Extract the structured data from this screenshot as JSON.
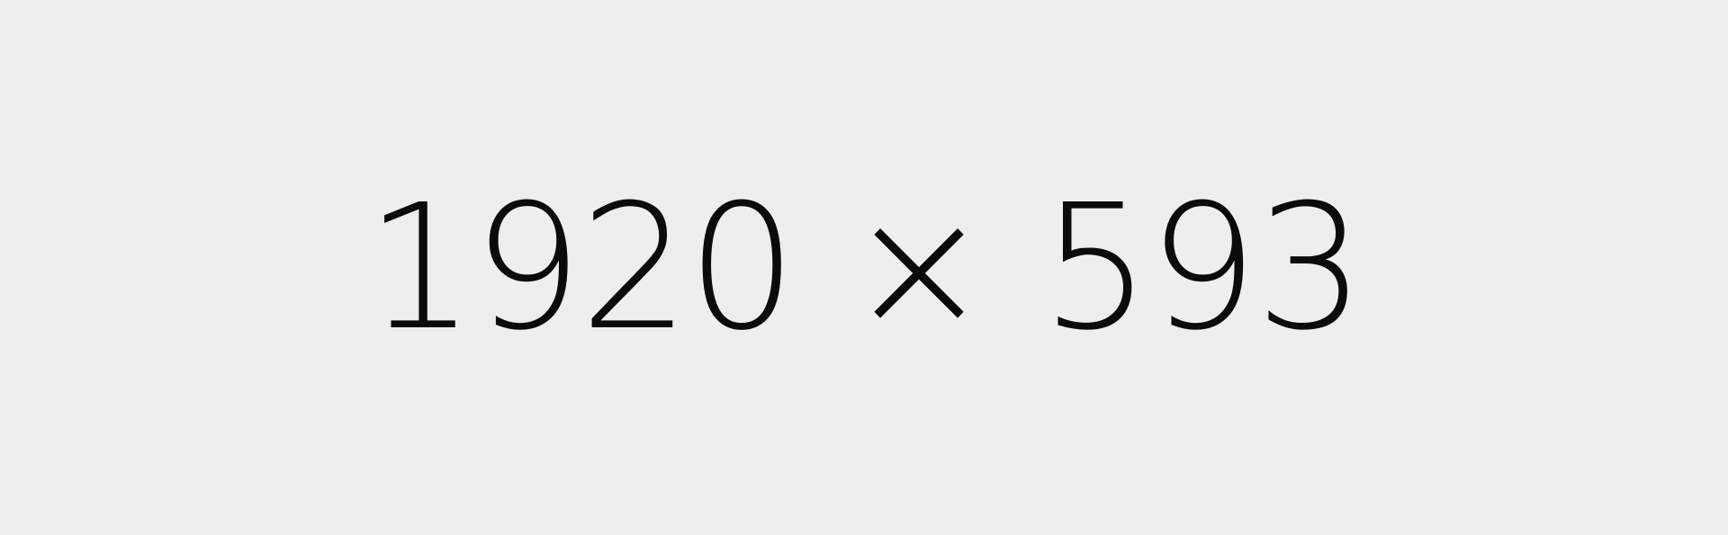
{
  "placeholder": {
    "text": "1920 × 593",
    "background_color": "#eeeeee",
    "text_color": "#0b0b0b"
  }
}
